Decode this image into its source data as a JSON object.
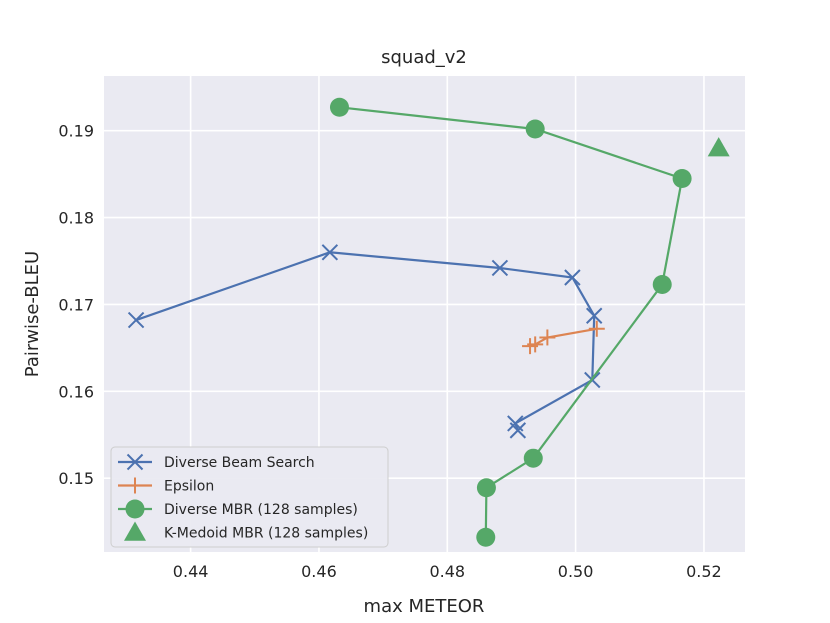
{
  "chart_data": {
    "type": "line",
    "title": "squad_v2",
    "xlabel": "max METEOR",
    "ylabel": "Pairwise-BLEU",
    "xlim": [
      0.4265,
      0.5264
    ],
    "ylim": [
      0.1415,
      0.1963
    ],
    "xticks": [
      0.44,
      0.46,
      0.48,
      0.5,
      0.52
    ],
    "yticks": [
      0.15,
      0.16,
      0.17,
      0.18,
      0.19
    ],
    "xtick_labels": [
      "0.44",
      "0.46",
      "0.48",
      "0.50",
      "0.52"
    ],
    "ytick_labels": [
      "0.15",
      "0.16",
      "0.17",
      "0.18",
      "0.19"
    ],
    "grid": true,
    "legend_position": "bottom-left",
    "series": [
      {
        "name": "Diverse Beam Search",
        "color": "#4c72b0",
        "marker": "x",
        "linestyle": "solid",
        "points": [
          [
            0.4315,
            0.1682
          ],
          [
            0.4617,
            0.176
          ],
          [
            0.4882,
            0.1742
          ],
          [
            0.4995,
            0.1731
          ],
          [
            0.5029,
            0.1687
          ],
          [
            0.5026,
            0.1613
          ],
          [
            0.4906,
            0.1563
          ],
          [
            0.491,
            0.1555
          ]
        ]
      },
      {
        "name": "Epsilon",
        "color": "#dd8452",
        "marker": "+",
        "linestyle": "solid",
        "points": [
          [
            0.4929,
            0.1652
          ],
          [
            0.4937,
            0.1654
          ],
          [
            0.4956,
            0.1662
          ],
          [
            0.5033,
            0.1672
          ]
        ]
      },
      {
        "name": "Diverse MBR (128 samples)",
        "color": "#55a868",
        "marker": "o",
        "linestyle": "solid",
        "points": [
          [
            0.4632,
            0.1927
          ],
          [
            0.4937,
            0.1902
          ],
          [
            0.5166,
            0.1845
          ],
          [
            0.5135,
            0.1723
          ],
          [
            0.4934,
            0.1523
          ],
          [
            0.4861,
            0.1489
          ],
          [
            0.486,
            0.1432
          ]
        ]
      },
      {
        "name": "K-Medoid MBR (128 samples)",
        "color": "#55a868",
        "marker": "^",
        "linestyle": "none",
        "points": [
          [
            0.5223,
            0.188
          ]
        ]
      }
    ]
  }
}
